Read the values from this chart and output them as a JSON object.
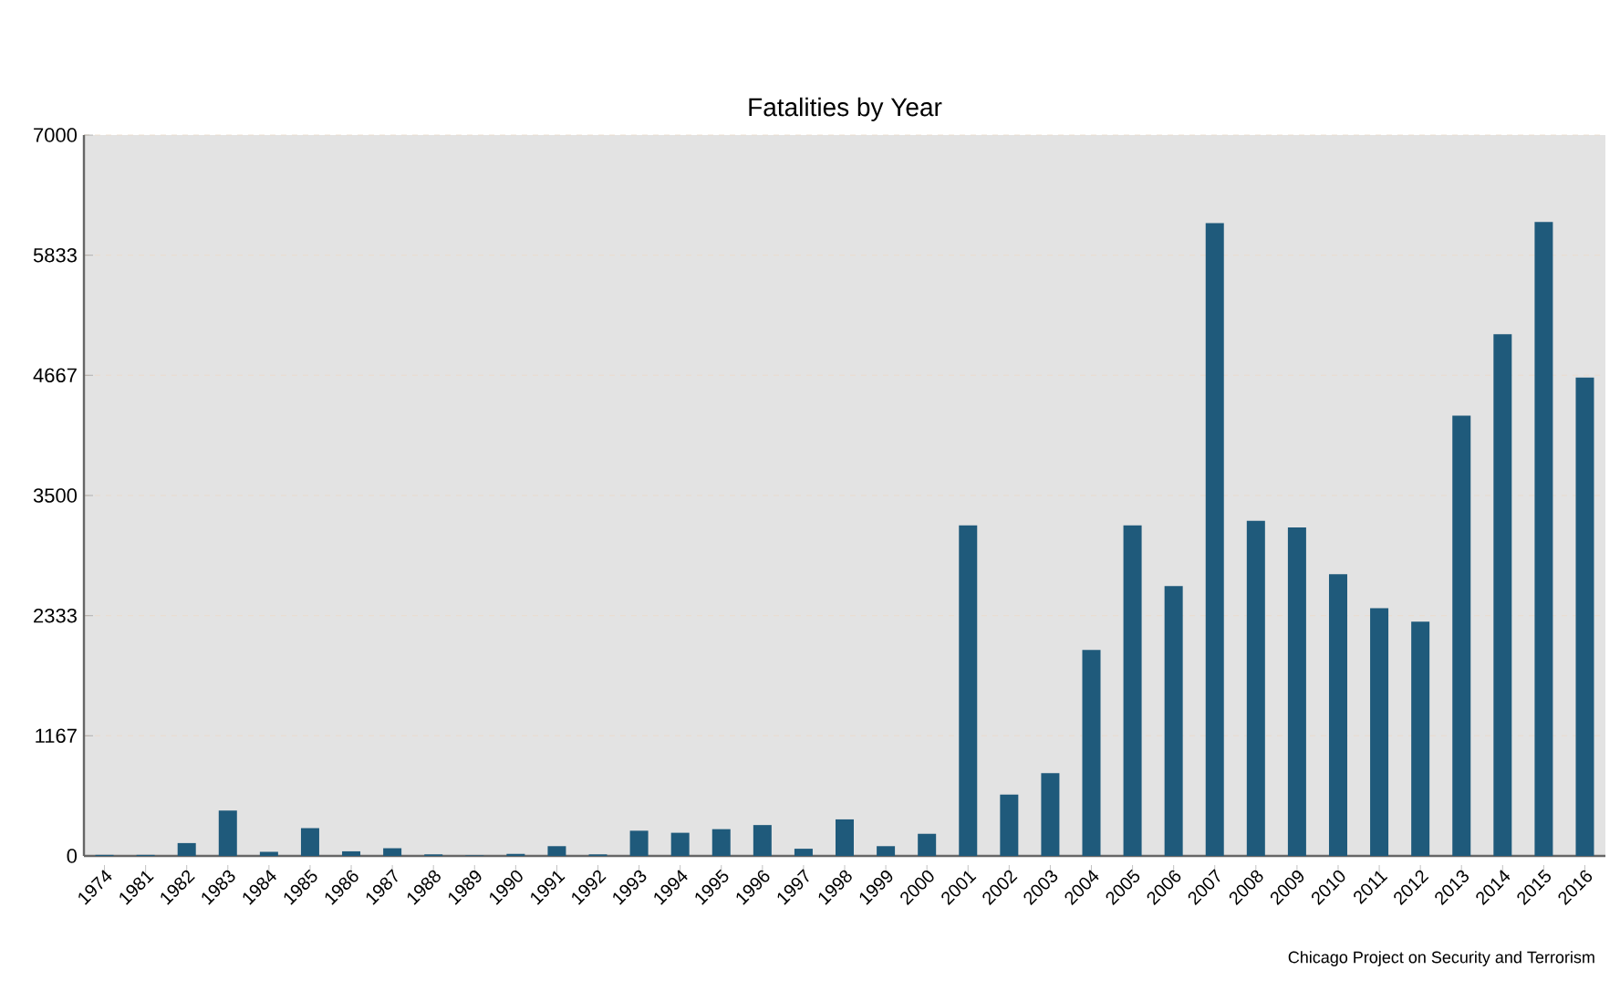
{
  "chart_data": {
    "type": "bar",
    "title": "Fatalities by Year",
    "categories": [
      "1974",
      "1981",
      "1982",
      "1983",
      "1984",
      "1985",
      "1986",
      "1987",
      "1988",
      "1989",
      "1990",
      "1991",
      "1992",
      "1993",
      "1994",
      "1995",
      "1996",
      "1997",
      "1998",
      "1999",
      "2000",
      "2001",
      "2002",
      "2003",
      "2004",
      "2005",
      "2006",
      "2007",
      "2008",
      "2009",
      "2010",
      "2011",
      "2012",
      "2013",
      "2014",
      "2015",
      "2016"
    ],
    "values": [
      10,
      10,
      125,
      440,
      40,
      270,
      45,
      75,
      15,
      5,
      20,
      95,
      15,
      245,
      225,
      260,
      300,
      70,
      355,
      95,
      215,
      3210,
      595,
      805,
      2000,
      3210,
      2620,
      6145,
      3255,
      3190,
      2735,
      2405,
      2275,
      4275,
      5065,
      6155,
      4645
    ],
    "color": "#1f5a7b",
    "ylim": [
      0,
      7000
    ],
    "yticks": [
      0,
      1167,
      2333,
      3500,
      4667,
      5833,
      7000
    ],
    "grid": "y",
    "annotations": [
      "Chicago Project on Security and Terrorism"
    ]
  }
}
